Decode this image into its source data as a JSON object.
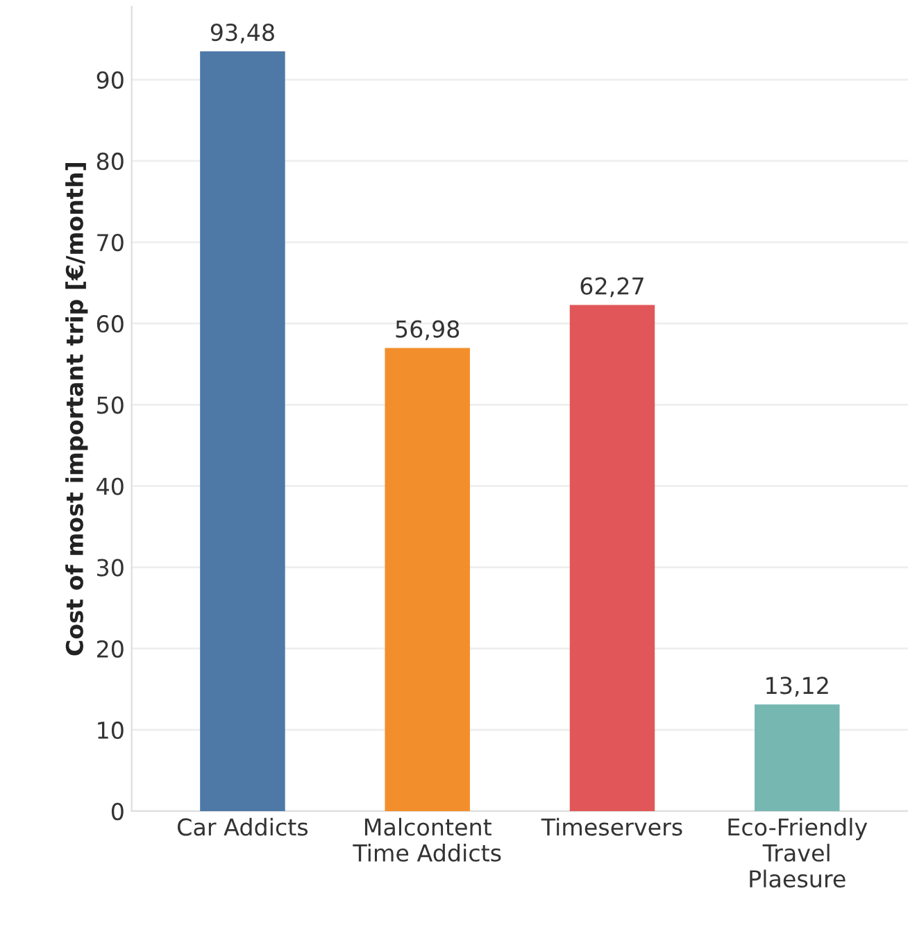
{
  "chart_data": {
    "type": "bar",
    "categories": [
      "Car Addicts",
      "Malcontent\nTime Addicts",
      "Timeservers",
      "Eco-Friendly\nTravel\nPlaesure"
    ],
    "values": [
      93.48,
      56.98,
      62.27,
      13.12
    ],
    "colors": [
      "#4e79a7",
      "#f28e2b",
      "#e15759",
      "#76b7b2"
    ],
    "value_labels": [
      "93,48",
      "56,98",
      "62,27",
      "13,12"
    ],
    "ylabel": "Cost of most important trip [€/month]",
    "ylim": [
      0,
      99
    ],
    "yticks": [
      0,
      10,
      20,
      30,
      40,
      50,
      60,
      70,
      80,
      90
    ],
    "grid": "y"
  }
}
